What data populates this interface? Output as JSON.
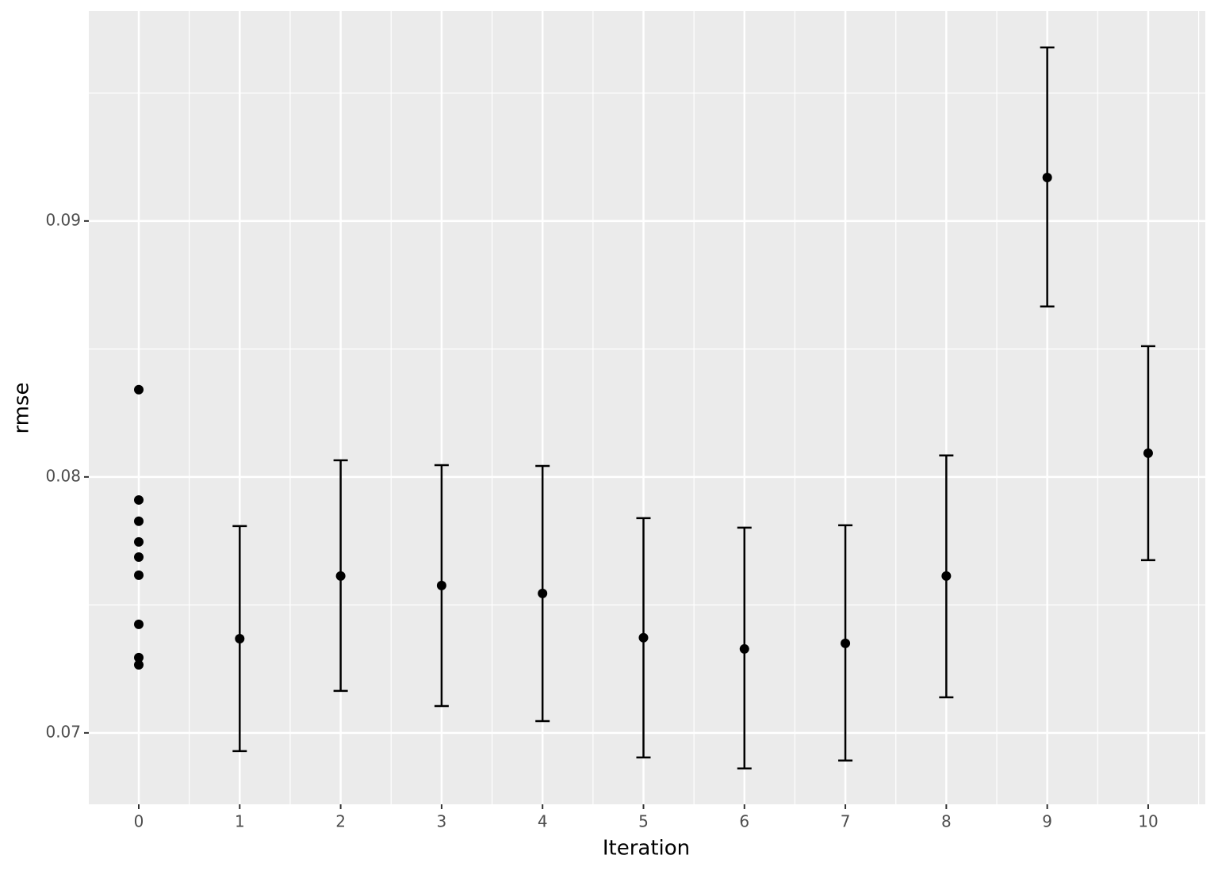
{
  "chart_data": {
    "type": "errorbar",
    "x_label": "Iteration",
    "y_label": "rmse",
    "points": {
      "x": [
        0,
        0,
        0,
        0,
        0,
        0,
        0,
        0,
        0
      ],
      "y": [
        0.08341,
        0.0791,
        0.07827,
        0.07746,
        0.07687,
        0.07616,
        0.07424,
        0.07294,
        0.07266
      ]
    },
    "summary": {
      "x": [
        1,
        2,
        3,
        4,
        5,
        6,
        7,
        8,
        9,
        10
      ],
      "y": [
        0.07368,
        0.07613,
        0.07576,
        0.07545,
        0.07372,
        0.07328,
        0.0735,
        0.07613,
        0.0917,
        0.08093
      ],
      "ymin": [
        0.06929,
        0.07164,
        0.07105,
        0.07046,
        0.06904,
        0.06861,
        0.06892,
        0.07139,
        0.08666,
        0.07675
      ],
      "ymax": [
        0.07808,
        0.08065,
        0.08046,
        0.08043,
        0.07839,
        0.07802,
        0.07811,
        0.08084,
        0.09678,
        0.08511
      ]
    },
    "color": "#000000",
    "xlim": [
      -0.495,
      10.566
    ],
    "ylim": [
      0.06721,
      0.0982
    ],
    "xticks": [
      0,
      1,
      2,
      3,
      4,
      5,
      6,
      7,
      8,
      9,
      10
    ],
    "yticks": [
      0.07,
      0.08,
      0.09
    ],
    "x_minor_ticks": [
      0.5,
      1.5,
      2.5,
      3.5,
      4.5,
      5.5,
      6.5,
      7.5,
      8.5,
      9.5,
      10.5
    ],
    "y_minor_ticks": [
      0.075,
      0.085,
      0.095
    ],
    "grid": true
  }
}
